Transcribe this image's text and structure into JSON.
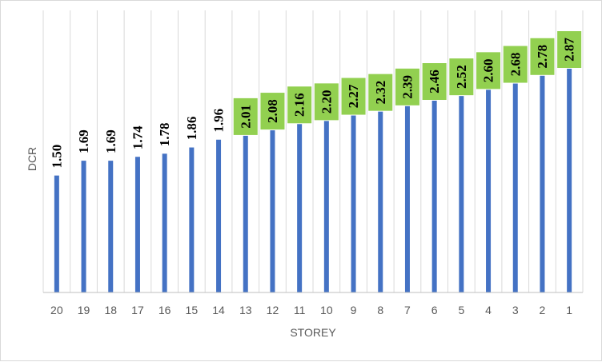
{
  "chart_data": {
    "type": "bar",
    "orientation": "vertical",
    "xlabel": "STOREY",
    "ylabel": "DCR",
    "categories": [
      "20",
      "19",
      "18",
      "17",
      "16",
      "15",
      "14",
      "13",
      "12",
      "11",
      "10",
      "9",
      "8",
      "7",
      "6",
      "5",
      "4",
      "3",
      "2",
      "1"
    ],
    "values": [
      1.5,
      1.69,
      1.69,
      1.74,
      1.78,
      1.86,
      1.96,
      2.01,
      2.08,
      2.16,
      2.2,
      2.27,
      2.32,
      2.39,
      2.46,
      2.52,
      2.6,
      2.68,
      2.78,
      2.87
    ],
    "data_labels": [
      "1.50",
      "1.69",
      "1.69",
      "1.74",
      "1.78",
      "1.86",
      "1.96",
      "2.01",
      "2.08",
      "2.16",
      "2.20",
      "2.27",
      "2.32",
      "2.39",
      "2.46",
      "2.52",
      "2.60",
      "2.68",
      "2.78",
      "2.87"
    ],
    "highlighted_labels": [
      "2.01",
      "2.08",
      "2.16",
      "2.20",
      "2.27",
      "2.32",
      "2.39",
      "2.46",
      "2.52",
      "2.60",
      "2.68",
      "2.78",
      "2.87"
    ],
    "ylim": [
      0,
      2.87
    ],
    "grid": "vertical",
    "legend": "none",
    "colors": {
      "bar": "#4472c4",
      "label_highlight": "#92d050",
      "gridline": "#d9d9d9",
      "axis_line": "#bfbfbf"
    }
  }
}
